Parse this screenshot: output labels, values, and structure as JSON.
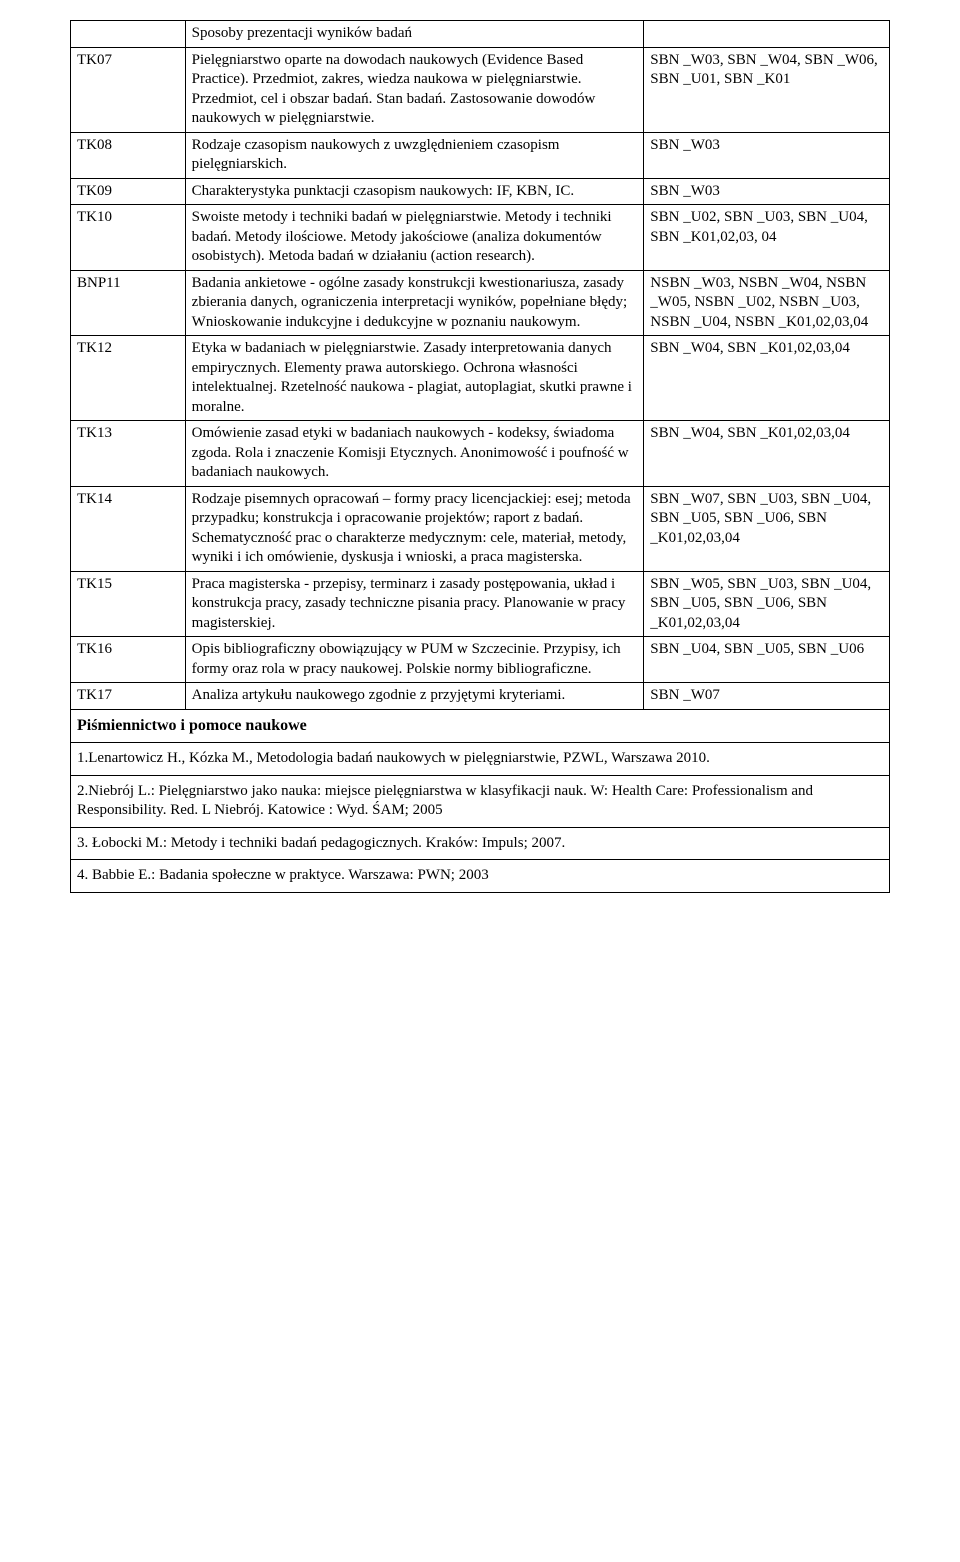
{
  "rows": [
    {
      "code": "",
      "desc": "Sposoby prezentacji wyników badań",
      "out": ""
    },
    {
      "code": "TK07",
      "desc": "Pielęgniarstwo oparte na dowodach naukowych (Evidence Based Practice). Przedmiot, zakres, wiedza naukowa w pielęgniarstwie. Przedmiot, cel i obszar badań. Stan badań. Zastosowanie dowodów naukowych w pielęgniarstwie.",
      "out": "SBN _W03, SBN _W04, SBN _W06, SBN _U01, SBN _K01"
    },
    {
      "code": "TK08",
      "desc": "Rodzaje czasopism naukowych z uwzględnieniem czasopism pielęgniarskich.",
      "out": "SBN _W03"
    },
    {
      "code": "TK09",
      "desc": "Charakterystyka punktacji czasopism naukowych: IF, KBN, IC.",
      "out": "SBN _W03"
    },
    {
      "code": "TK10",
      "desc": "Swoiste metody i techniki badań w pielęgniarstwie. Metody i techniki badań. Metody ilościowe. Metody jakościowe (analiza dokumentów osobistych). Metoda badań w działaniu (action research).",
      "out": "SBN _U02, SBN _U03, SBN _U04, SBN _K01,02,03, 04"
    },
    {
      "code": "BNP11",
      "desc": "Badania ankietowe - ogólne zasady konstrukcji kwestionariusza, zasady zbierania danych, ograniczenia interpretacji wyników, popełniane błędy; Wnioskowanie indukcyjne i dedukcyjne w poznaniu naukowym.",
      "out": "NSBN _W03, NSBN _W04, NSBN _W05, NSBN _U02, NSBN _U03, NSBN _U04, NSBN _K01,02,03,04"
    },
    {
      "code": "TK12",
      "desc": "Etyka w badaniach w pielęgniarstwie. Zasady interpretowania danych empirycznych. Elementy prawa autorskiego. Ochrona własności intelektualnej. Rzetelność naukowa - plagiat, autoplagiat, skutki prawne i moralne.",
      "out": "SBN _W04, SBN _K01,02,03,04"
    },
    {
      "code": "TK13",
      "desc": "Omówienie zasad etyki w badaniach naukowych - kodeksy, świadoma zgoda. Rola i znaczenie Komisji Etycznych. Anonimowość i poufność w badaniach naukowych.",
      "out": "SBN _W04, SBN _K01,02,03,04"
    },
    {
      "code": "TK14",
      "desc": "Rodzaje pisemnych opracowań – formy pracy licencjackiej: esej; metoda przypadku; konstrukcja i opracowanie projektów; raport z badań. Schematyczność prac o charakterze medycznym: cele, materiał, metody, wyniki i ich omówienie, dyskusja i wnioski, a praca magisterska.",
      "out": "SBN _W07, SBN _U03, SBN _U04, SBN _U05, SBN _U06, SBN _K01,02,03,04"
    },
    {
      "code": "TK15",
      "desc": "Praca magisterska - przepisy, terminarz i zasady postępowania, układ i konstrukcja pracy, zasady techniczne pisania pracy. Planowanie w pracy magisterskiej.",
      "out": "SBN _W05, SBN _U03, SBN _U04, SBN _U05, SBN _U06, SBN _K01,02,03,04"
    },
    {
      "code": "TK16",
      "desc": "Opis bibliograficzny obowiązujący w PUM w Szczecinie. Przypisy, ich formy oraz rola w pracy naukowej. Polskie normy bibliograficzne.",
      "out": "SBN _U04, SBN _U05, SBN _U06"
    },
    {
      "code": "TK17",
      "desc": "Analiza artykułu naukowego zgodnie z przyjętymi kryteriami.",
      "out": "SBN _W07"
    }
  ],
  "section_header": "Piśmiennictwo i pomoce naukowe",
  "refs": [
    "1.Lenartowicz H., Kózka M., Metodologia badań naukowych w pielęgniarstwie, PZWL, Warszawa 2010.",
    "2.Niebrój L.: Pielęgniarstwo jako nauka: miejsce pielęgniarstwa w klasyfikacji nauk. W: Health Care: Professionalism and Responsibility. Red. L Niebrój. Katowice : Wyd. ŚAM; 2005",
    "3. Łobocki M.: Metody i techniki badań pedagogicznych. Kraków: Impuls; 2007.",
    "4. Babbie E.: Badania społeczne w praktyce. Warszawa: PWN; 2003"
  ]
}
